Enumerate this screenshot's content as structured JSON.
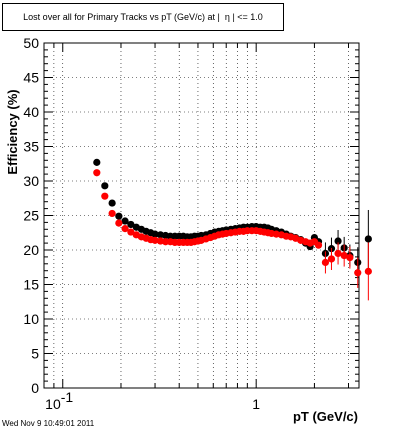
{
  "title": {
    "prefix": "Lost over all for Primary Tracks vs pT (GeV/c) at |",
    "symbol": "η",
    "suffix": "| <= 1.0"
  },
  "footer": "Wed Nov  9 10:49:01 2011",
  "colors": {
    "series_black": "#000000",
    "series_red": "#ff0000"
  },
  "chart_data": {
    "type": "scatter",
    "title": "Lost over all for Primary Tracks vs pT (GeV/c) at | η | <= 1.0",
    "xlabel": "pT (GeV/c)",
    "ylabel": "Efficiency (%)",
    "xscale": "log",
    "xlim": [
      0.08,
      3.4
    ],
    "ylim": [
      0,
      50
    ],
    "grid": true,
    "x_tick_labels": [
      "10",
      "-1",
      "1"
    ],
    "y_ticks": [
      0,
      5,
      10,
      15,
      20,
      25,
      30,
      35,
      40,
      45,
      50
    ],
    "series": [
      {
        "color": "#000000",
        "points": [
          {
            "x": 0.15,
            "y": 32.7
          },
          {
            "x": 0.165,
            "y": 29.3
          },
          {
            "x": 0.18,
            "y": 26.8
          },
          {
            "x": 0.195,
            "y": 24.9
          },
          {
            "x": 0.21,
            "y": 24.2
          },
          {
            "x": 0.225,
            "y": 23.7
          },
          {
            "x": 0.24,
            "y": 23.3
          },
          {
            "x": 0.255,
            "y": 23.0
          },
          {
            "x": 0.27,
            "y": 22.7
          },
          {
            "x": 0.285,
            "y": 22.5
          },
          {
            "x": 0.3,
            "y": 22.3
          },
          {
            "x": 0.32,
            "y": 22.2
          },
          {
            "x": 0.34,
            "y": 22.1
          },
          {
            "x": 0.36,
            "y": 22.0
          },
          {
            "x": 0.38,
            "y": 22.0
          },
          {
            "x": 0.4,
            "y": 22.0
          },
          {
            "x": 0.42,
            "y": 22.0
          },
          {
            "x": 0.44,
            "y": 21.9
          },
          {
            "x": 0.46,
            "y": 21.9
          },
          {
            "x": 0.48,
            "y": 22.0
          },
          {
            "x": 0.5,
            "y": 22.0
          },
          {
            "x": 0.52,
            "y": 22.1
          },
          {
            "x": 0.55,
            "y": 22.2
          },
          {
            "x": 0.58,
            "y": 22.4
          },
          {
            "x": 0.61,
            "y": 22.6
          },
          {
            "x": 0.64,
            "y": 22.7
          },
          {
            "x": 0.67,
            "y": 22.8
          },
          {
            "x": 0.7,
            "y": 22.9
          },
          {
            "x": 0.74,
            "y": 23.0
          },
          {
            "x": 0.78,
            "y": 23.1
          },
          {
            "x": 0.82,
            "y": 23.2
          },
          {
            "x": 0.86,
            "y": 23.3
          },
          {
            "x": 0.9,
            "y": 23.3
          },
          {
            "x": 0.95,
            "y": 23.4
          },
          {
            "x": 1.0,
            "y": 23.4
          },
          {
            "x": 1.05,
            "y": 23.3
          },
          {
            "x": 1.1,
            "y": 23.3
          },
          {
            "x": 1.15,
            "y": 23.2
          },
          {
            "x": 1.2,
            "y": 23.0
          },
          {
            "x": 1.27,
            "y": 22.8
          },
          {
            "x": 1.35,
            "y": 22.6
          },
          {
            "x": 1.43,
            "y": 22.3
          },
          {
            "x": 1.51,
            "y": 22.0
          },
          {
            "x": 1.6,
            "y": 21.8
          },
          {
            "x": 1.7,
            "y": 21.5
          },
          {
            "x": 1.8,
            "y": 21.0
          },
          {
            "x": 1.9,
            "y": 20.5
          },
          {
            "x": 2.0,
            "y": 21.8
          },
          {
            "x": 2.1,
            "y": 21.2
          },
          {
            "x": 2.28,
            "y": 19.5
          },
          {
            "x": 2.45,
            "y": 20.2
          },
          {
            "x": 2.65,
            "y": 21.3
          },
          {
            "x": 2.85,
            "y": 20.3
          },
          {
            "x": 3.05,
            "y": 19.2
          },
          {
            "x": 3.35,
            "y": 18.2
          },
          {
            "x": 3.8,
            "y": 21.6
          }
        ]
      },
      {
        "color": "#ff0000",
        "points": [
          {
            "x": 0.15,
            "y": 31.2
          },
          {
            "x": 0.165,
            "y": 27.8
          },
          {
            "x": 0.18,
            "y": 25.3
          },
          {
            "x": 0.195,
            "y": 23.9
          },
          {
            "x": 0.21,
            "y": 23.1
          },
          {
            "x": 0.225,
            "y": 22.6
          },
          {
            "x": 0.24,
            "y": 22.2
          },
          {
            "x": 0.255,
            "y": 21.9
          },
          {
            "x": 0.27,
            "y": 21.7
          },
          {
            "x": 0.285,
            "y": 21.5
          },
          {
            "x": 0.3,
            "y": 21.4
          },
          {
            "x": 0.32,
            "y": 21.3
          },
          {
            "x": 0.34,
            "y": 21.2
          },
          {
            "x": 0.36,
            "y": 21.2
          },
          {
            "x": 0.38,
            "y": 21.1
          },
          {
            "x": 0.4,
            "y": 21.1
          },
          {
            "x": 0.42,
            "y": 21.1
          },
          {
            "x": 0.44,
            "y": 21.1
          },
          {
            "x": 0.46,
            "y": 21.1
          },
          {
            "x": 0.48,
            "y": 21.2
          },
          {
            "x": 0.5,
            "y": 21.3
          },
          {
            "x": 0.52,
            "y": 21.4
          },
          {
            "x": 0.55,
            "y": 21.6
          },
          {
            "x": 0.58,
            "y": 21.8
          },
          {
            "x": 0.61,
            "y": 22.0
          },
          {
            "x": 0.64,
            "y": 22.2
          },
          {
            "x": 0.67,
            "y": 22.3
          },
          {
            "x": 0.7,
            "y": 22.4
          },
          {
            "x": 0.74,
            "y": 22.5
          },
          {
            "x": 0.78,
            "y": 22.6
          },
          {
            "x": 0.82,
            "y": 22.7
          },
          {
            "x": 0.86,
            "y": 22.7
          },
          {
            "x": 0.9,
            "y": 22.8
          },
          {
            "x": 0.95,
            "y": 22.8
          },
          {
            "x": 1.0,
            "y": 22.8
          },
          {
            "x": 1.05,
            "y": 22.7
          },
          {
            "x": 1.1,
            "y": 22.6
          },
          {
            "x": 1.15,
            "y": 22.5
          },
          {
            "x": 1.2,
            "y": 22.4
          },
          {
            "x": 1.27,
            "y": 22.3
          },
          {
            "x": 1.35,
            "y": 22.2
          },
          {
            "x": 1.43,
            "y": 22.0
          },
          {
            "x": 1.51,
            "y": 21.9
          },
          {
            "x": 1.6,
            "y": 21.7
          },
          {
            "x": 1.7,
            "y": 21.4
          },
          {
            "x": 1.8,
            "y": 21.2
          },
          {
            "x": 1.9,
            "y": 21.0
          },
          {
            "x": 2.0,
            "y": 21.2
          },
          {
            "x": 2.1,
            "y": 20.7
          },
          {
            "x": 2.28,
            "y": 18.2
          },
          {
            "x": 2.45,
            "y": 18.7
          },
          {
            "x": 2.65,
            "y": 19.5
          },
          {
            "x": 2.85,
            "y": 19.2
          },
          {
            "x": 3.05,
            "y": 18.9
          },
          {
            "x": 3.35,
            "y": 16.7
          },
          {
            "x": 3.8,
            "y": 16.9
          }
        ]
      }
    ]
  }
}
